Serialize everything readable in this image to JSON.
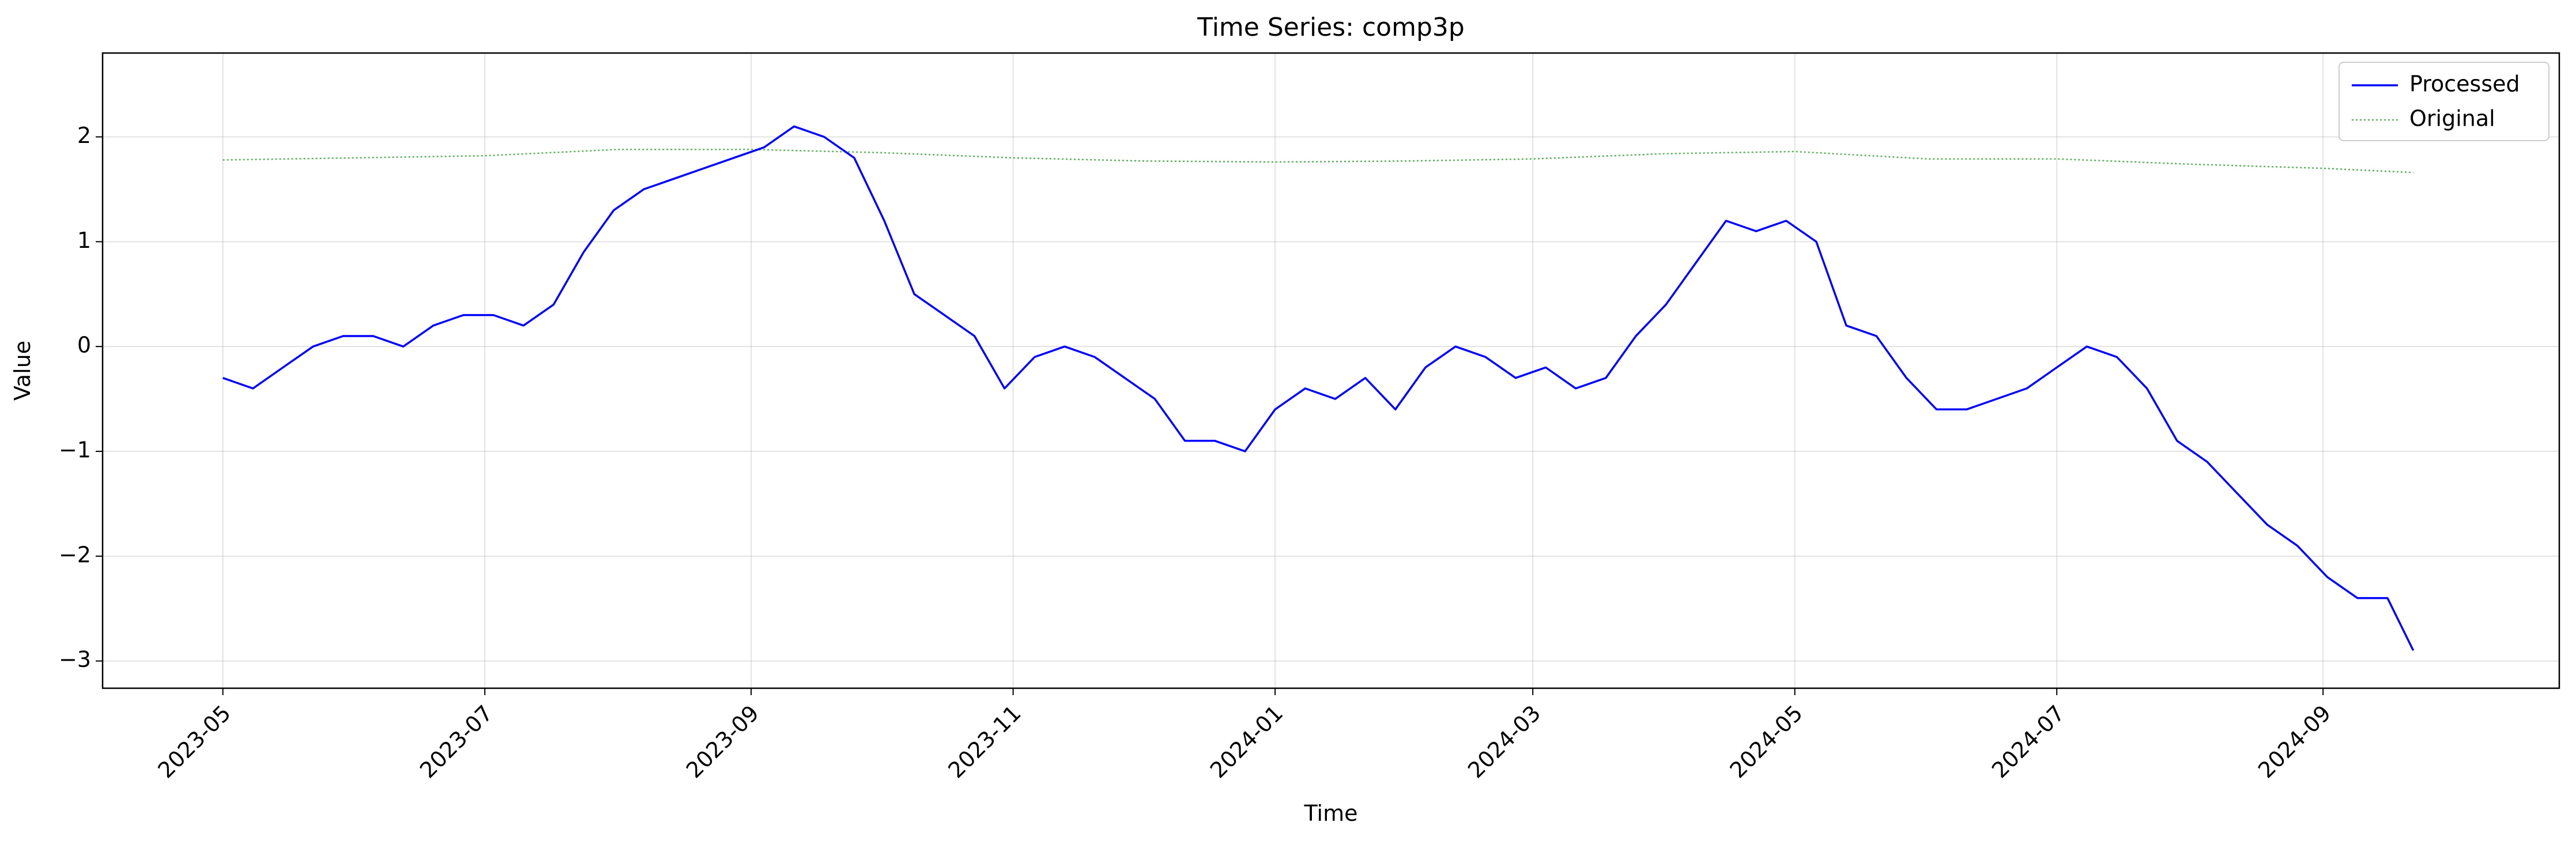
{
  "chart_data": {
    "type": "line",
    "title": "Time Series: comp3p",
    "xlabel": "Time",
    "ylabel": "Value",
    "x_range": [
      "2023-04-03",
      "2024-10-26"
    ],
    "ylim": [
      -3.26,
      2.8
    ],
    "x_ticks": [
      "2023-05-01",
      "2023-07-01",
      "2023-09-01",
      "2023-11-01",
      "2024-01-01",
      "2024-03-01",
      "2024-05-01",
      "2024-07-01",
      "2024-09-01"
    ],
    "x_tick_labels": [
      "2023-05",
      "2023-07",
      "2023-09",
      "2023-11",
      "2024-01",
      "2024-03",
      "2024-05",
      "2024-07",
      "2024-09"
    ],
    "y_ticks": [
      -3,
      -2,
      -1,
      0,
      1,
      2
    ],
    "y_tick_labels": [
      "−3",
      "−2",
      "−1",
      "0",
      "1",
      "2"
    ],
    "grid": true,
    "legend_position": "top-right",
    "series": [
      {
        "name": "Processed",
        "color": "#0000ff",
        "style": "solid",
        "x": [
          "2023-05-01",
          "2023-05-08",
          "2023-05-15",
          "2023-05-22",
          "2023-05-29",
          "2023-06-05",
          "2023-06-12",
          "2023-06-19",
          "2023-06-26",
          "2023-07-03",
          "2023-07-10",
          "2023-07-17",
          "2023-07-24",
          "2023-07-31",
          "2023-08-07",
          "2023-08-14",
          "2023-08-21",
          "2023-08-28",
          "2023-09-04",
          "2023-09-11",
          "2023-09-18",
          "2023-09-25",
          "2023-10-02",
          "2023-10-09",
          "2023-10-16",
          "2023-10-23",
          "2023-10-30",
          "2023-11-06",
          "2023-11-13",
          "2023-11-20",
          "2023-11-27",
          "2023-12-04",
          "2023-12-11",
          "2023-12-18",
          "2023-12-25",
          "2024-01-01",
          "2024-01-08",
          "2024-01-15",
          "2024-01-22",
          "2024-01-29",
          "2024-02-05",
          "2024-02-12",
          "2024-02-19",
          "2024-02-26",
          "2024-03-04",
          "2024-03-11",
          "2024-03-18",
          "2024-03-25",
          "2024-04-01",
          "2024-04-08",
          "2024-04-15",
          "2024-04-22",
          "2024-04-29",
          "2024-05-06",
          "2024-05-13",
          "2024-05-20",
          "2024-05-27",
          "2024-06-03",
          "2024-06-10",
          "2024-06-17",
          "2024-06-24",
          "2024-07-01",
          "2024-07-08",
          "2024-07-15",
          "2024-07-22",
          "2024-07-29",
          "2024-08-05",
          "2024-08-12",
          "2024-08-19",
          "2024-08-26",
          "2024-09-02",
          "2024-09-09",
          "2024-09-16",
          "2024-09-22"
        ],
        "y": [
          -0.3,
          -0.4,
          -0.2,
          0.0,
          0.1,
          0.1,
          0.0,
          0.2,
          0.3,
          0.3,
          0.2,
          0.4,
          0.9,
          1.3,
          1.5,
          1.6,
          1.7,
          1.8,
          1.9,
          2.1,
          2.0,
          1.8,
          1.2,
          0.5,
          0.3,
          0.1,
          -0.4,
          -0.1,
          0.0,
          -0.1,
          -0.3,
          -0.5,
          -0.9,
          -0.9,
          -1.0,
          -0.6,
          -0.4,
          -0.5,
          -0.3,
          -0.6,
          -0.2,
          0.0,
          -0.1,
          -0.3,
          -0.2,
          -0.4,
          -0.3,
          0.1,
          0.4,
          0.8,
          1.2,
          1.1,
          1.2,
          1.0,
          0.2,
          0.1,
          -0.3,
          -0.6,
          -0.6,
          -0.5,
          -0.4,
          -0.2,
          0.0,
          -0.1,
          -0.4,
          -0.9,
          -1.1,
          -1.4,
          -1.7,
          -1.9,
          -2.2,
          -2.4,
          -2.4,
          -2.9
        ]
      },
      {
        "name": "Original",
        "color": "#2ca02c",
        "style": "dotted",
        "x": [
          "2023-05-01",
          "2023-06-01",
          "2023-07-01",
          "2023-08-01",
          "2023-09-01",
          "2023-10-01",
          "2023-11-01",
          "2023-12-01",
          "2024-01-01",
          "2024-02-01",
          "2024-03-01",
          "2024-04-01",
          "2024-05-01",
          "2024-06-01",
          "2024-07-01",
          "2024-08-01",
          "2024-09-01",
          "2024-09-22"
        ],
        "y": [
          1.78,
          1.8,
          1.82,
          1.88,
          1.88,
          1.85,
          1.8,
          1.77,
          1.76,
          1.77,
          1.79,
          1.84,
          1.86,
          1.79,
          1.79,
          1.74,
          1.7,
          1.66
        ]
      }
    ]
  }
}
